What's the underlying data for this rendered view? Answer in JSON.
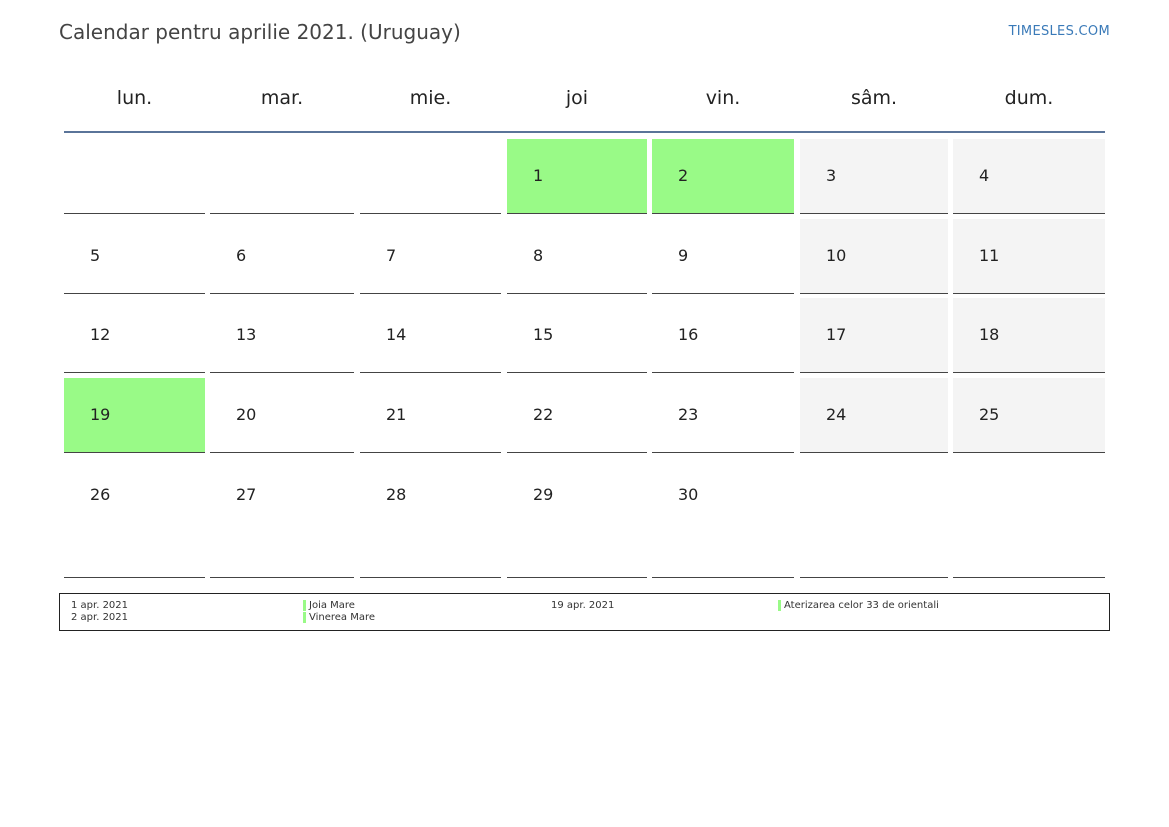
{
  "title": "Calendar pentru aprilie 2021. (Uruguay)",
  "site": "TIMESLES.COM",
  "colors": {
    "holiday": "#99fa87",
    "weekend": "#f4f4f4",
    "header_rule": "#5a7499",
    "link": "#3a7ab8"
  },
  "weekdays": [
    "lun.",
    "mar.",
    "mie.",
    "joi",
    "vin.",
    "sâm.",
    "dum."
  ],
  "weeks": [
    [
      null,
      null,
      null,
      "1",
      "2",
      "3",
      "4"
    ],
    [
      "5",
      "6",
      "7",
      "8",
      "9",
      "10",
      "11"
    ],
    [
      "12",
      "13",
      "14",
      "15",
      "16",
      "17",
      "18"
    ],
    [
      "19",
      "20",
      "21",
      "22",
      "23",
      "24",
      "25"
    ],
    [
      "26",
      "27",
      "28",
      "29",
      "30",
      null,
      null
    ]
  ],
  "holiday_days": [
    "1",
    "2",
    "19"
  ],
  "legend": [
    {
      "date": "1 apr. 2021",
      "name": "Joia Mare"
    },
    {
      "date": "2 apr. 2021",
      "name": "Vinerea Mare"
    },
    {
      "date": "19 apr. 2021",
      "name": "Aterizarea celor 33 de orientali"
    }
  ]
}
